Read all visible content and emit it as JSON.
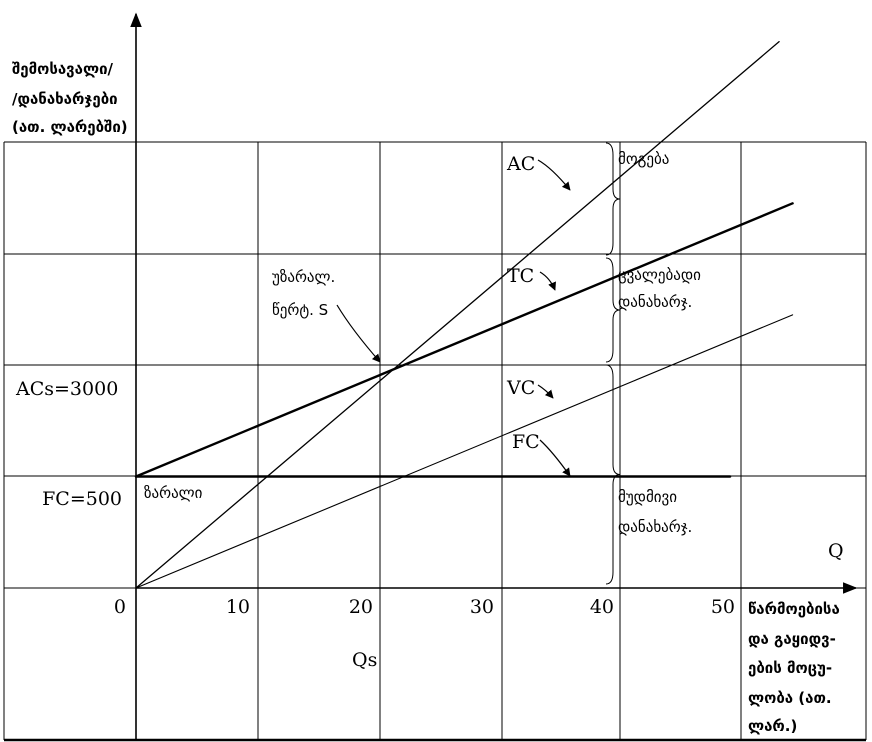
{
  "chart_data": {
    "type": "line",
    "ylabel_lines": [
      "შემოსავალი/",
      "/დანახარჯები",
      "(ათ. ლარებში)"
    ],
    "xlabel_lines": [
      "წარმოებისა",
      "და  გაყიდვ-",
      "ების მოცუ-",
      "ლობა   (ათ.",
      "ლარ.)"
    ],
    "q_label": "Q",
    "xlim": [
      0,
      60
    ],
    "x_ticks": [
      {
        "value": 0,
        "label": "0"
      },
      {
        "value": 10,
        "label": "10"
      },
      {
        "value": 20,
        "label": "20"
      },
      {
        "value": 30,
        "label": "30"
      },
      {
        "value": 40,
        "label": "40"
      },
      {
        "value": 50,
        "label": "50"
      }
    ],
    "y_tick_labels": [
      {
        "level": 1,
        "label": "FC=500"
      },
      {
        "level": 2,
        "label": "ACs=3000"
      }
    ],
    "qs_label": "Qs",
    "series": [
      {
        "name": "AC",
        "points": [
          [
            0,
            0
          ],
          [
            52.5,
            4.9
          ]
        ]
      },
      {
        "name": "TC",
        "points": [
          [
            0,
            1
          ],
          [
            53.6,
            3.45
          ]
        ]
      },
      {
        "name": "VC",
        "points": [
          [
            0,
            0
          ],
          [
            53.6,
            2.45
          ]
        ]
      },
      {
        "name": "FC",
        "points": [
          [
            0,
            1
          ],
          [
            48.5,
            1
          ]
        ]
      }
    ],
    "annotations": {
      "breakeven": [
        "უზარალ.",
        "წერტ. S"
      ],
      "loss": "ზარალი",
      "profit": "მოგება",
      "variable_cost": [
        "ცვალებადი",
        "დანახარჯ."
      ],
      "fixed_cost": [
        "მუდმივი",
        "დანახარჯ."
      ]
    }
  }
}
